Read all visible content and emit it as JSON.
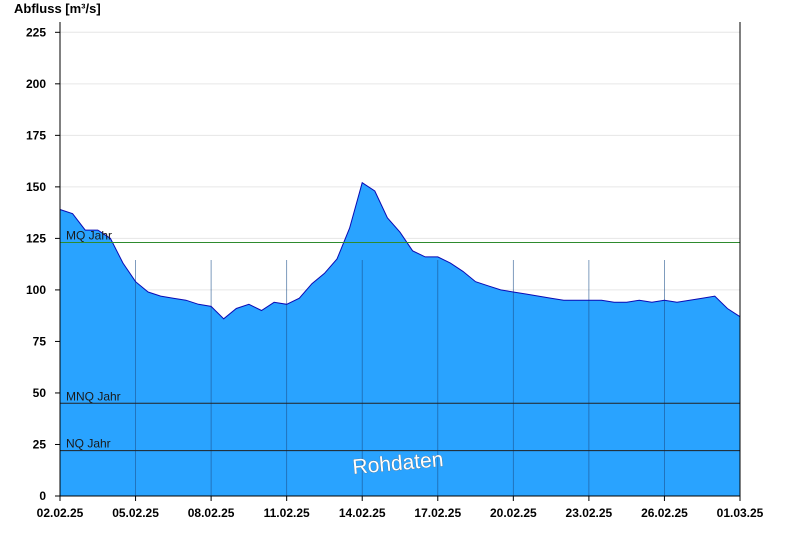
{
  "chart_data": {
    "type": "area",
    "ylabel": "Abfluss [m³/s]",
    "ylim": [
      0,
      230
    ],
    "yticks": [
      0,
      25,
      50,
      75,
      100,
      125,
      150,
      175,
      200,
      225
    ],
    "xlim": [
      "02.02.25",
      "01.03.25"
    ],
    "xticks": [
      "02.02.25",
      "05.02.25",
      "08.02.25",
      "11.02.25",
      "14.02.25",
      "17.02.25",
      "20.02.25",
      "23.02.25",
      "26.02.25",
      "01.03.25"
    ],
    "grid": true,
    "series": [
      {
        "color": "#29a3ff",
        "line_color": "#0a0ab4",
        "x": [
          "02.02.25",
          "02.02.25 12:00",
          "03.02.25",
          "03.02.25 12:00",
          "04.02.25",
          "04.02.25 12:00",
          "05.02.25",
          "05.02.25 12:00",
          "06.02.25",
          "06.02.25 12:00",
          "07.02.25",
          "07.02.25 12:00",
          "08.02.25",
          "08.02.25 12:00",
          "09.02.25",
          "09.02.25 12:00",
          "10.02.25",
          "10.02.25 12:00",
          "11.02.25",
          "11.02.25 12:00",
          "12.02.25",
          "12.02.25 12:00",
          "13.02.25",
          "13.02.25 12:00",
          "14.02.25",
          "14.02.25 12:00",
          "15.02.25",
          "15.02.25 12:00",
          "16.02.25",
          "16.02.25 12:00",
          "17.02.25",
          "17.02.25 12:00",
          "18.02.25",
          "18.02.25 12:00",
          "19.02.25",
          "19.02.25 12:00",
          "20.02.25",
          "20.02.25 12:00",
          "21.02.25",
          "21.02.25 12:00",
          "22.02.25",
          "22.02.25 12:00",
          "23.02.25",
          "23.02.25 12:00",
          "24.02.25",
          "24.02.25 12:00",
          "25.02.25",
          "25.02.25 12:00",
          "26.02.25",
          "26.02.25 12:00",
          "27.02.25",
          "27.02.25 12:00",
          "28.02.25",
          "28.02.25 12:00",
          "01.03.25"
        ],
        "values": [
          139,
          137,
          129,
          129,
          125,
          113,
          104,
          99,
          97,
          96,
          95,
          93,
          92,
          86,
          91,
          93,
          90,
          94,
          93,
          96,
          103,
          108,
          115,
          130,
          152,
          148,
          135,
          128,
          119,
          116,
          116,
          113,
          109,
          104,
          102,
          100,
          99,
          98,
          97,
          96,
          95,
          95,
          95,
          95,
          94,
          94,
          95,
          94,
          95,
          94,
          95,
          96,
          97,
          91,
          87
        ]
      }
    ],
    "reference_lines": [
      {
        "label": "MQ Jahr",
        "value": 123,
        "color": "#2e8b2e"
      },
      {
        "label": "MNQ Jahr",
        "value": 45,
        "color": "#222222"
      },
      {
        "label": "NQ Jahr",
        "value": 22,
        "color": "#222222"
      }
    ],
    "watermark": "Rohdaten"
  }
}
